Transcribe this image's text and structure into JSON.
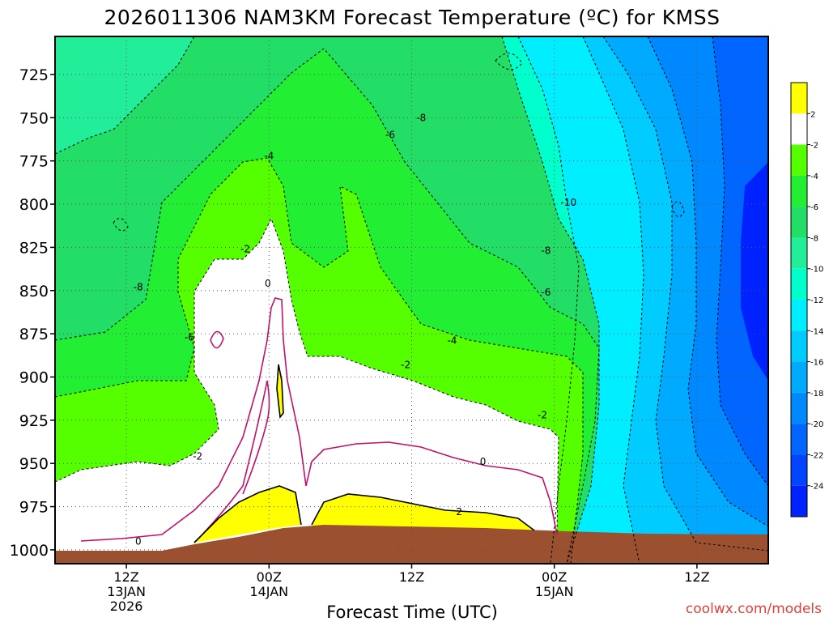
{
  "chart_data": {
    "type": "heatmap",
    "title": "2026011306 NAM3KM Forecast Temperature (ºC) for KMSS",
    "xlabel": "Forecast Time (UTC)",
    "ylabel": "",
    "y_ticks": [
      725,
      750,
      775,
      800,
      825,
      850,
      875,
      900,
      925,
      950,
      975,
      1000
    ],
    "ylim": [
      1008,
      703
    ],
    "x_ticks": [
      {
        "hours": 6,
        "lines": [
          "12Z",
          "13JAN",
          "2026"
        ]
      },
      {
        "hours": 18,
        "lines": [
          "00Z",
          "14JAN"
        ]
      },
      {
        "hours": 30,
        "lines": [
          "12Z"
        ]
      },
      {
        "hours": 42,
        "lines": [
          "00Z",
          "15JAN"
        ]
      },
      {
        "hours": 54,
        "lines": [
          "12Z"
        ]
      }
    ],
    "xlim": [
      0,
      60
    ],
    "colorbar": {
      "levels": [
        2,
        -2,
        -4,
        -6,
        -8,
        -10,
        -12,
        -14,
        -16,
        -18,
        -20,
        -22,
        -24
      ],
      "colors": [
        "#ffff00",
        "#ffffff",
        "#55ff00",
        "#22ee33",
        "#22dd66",
        "#22ee99",
        "#00ffcc",
        "#00eeff",
        "#00ccff",
        "#00aaff",
        "#0088ff",
        "#0066ff",
        "#0044ff",
        "#0022ff"
      ]
    },
    "contour_labels": [
      {
        "text": "-8",
        "hours": 30.8,
        "p": 750
      },
      {
        "text": "-6",
        "hours": 28.2,
        "p": 760
      },
      {
        "text": "-4",
        "hours": 18.0,
        "p": 772
      },
      {
        "text": "-10",
        "hours": 43.2,
        "p": 799
      },
      {
        "text": "-2",
        "hours": 16.0,
        "p": 826
      },
      {
        "text": "-8",
        "hours": 41.3,
        "p": 827
      },
      {
        "text": "0",
        "hours": 17.9,
        "p": 846
      },
      {
        "text": "-8",
        "hours": 7.0,
        "p": 848
      },
      {
        "text": "-6",
        "hours": 41.3,
        "p": 851
      },
      {
        "text": "-6",
        "hours": 11.3,
        "p": 877
      },
      {
        "text": "-4",
        "hours": 33.4,
        "p": 879
      },
      {
        "text": "-2",
        "hours": 29.5,
        "p": 893
      },
      {
        "text": "-2",
        "hours": 41.0,
        "p": 922
      },
      {
        "text": "-2",
        "hours": 12.0,
        "p": 946
      },
      {
        "text": "0",
        "hours": 36.0,
        "p": 949
      },
      {
        "text": "2",
        "hours": 34.0,
        "p": 978
      },
      {
        "text": "0",
        "hours": 7.0,
        "p": 995
      }
    ],
    "series": [
      {
        "values": [
          {
            "hours": 0,
            "p": 1002
          },
          {
            "hours": 5,
            "p": 1001
          },
          {
            "hours": 10,
            "p": 1001
          },
          {
            "hours": 12,
            "p": 1000
          },
          {
            "hours": 15,
            "p": 998
          },
          {
            "hours": 18,
            "p": 995
          },
          {
            "hours": 21,
            "p": 994
          },
          {
            "hours": 30,
            "p": 994
          },
          {
            "hours": 36,
            "p": 995
          },
          {
            "hours": 42,
            "p": 996
          },
          {
            "hours": 50,
            "p": 997
          },
          {
            "hours": 60,
            "p": 997
          }
        ]
      }
    ]
  },
  "credit": "coolwx.com/models"
}
